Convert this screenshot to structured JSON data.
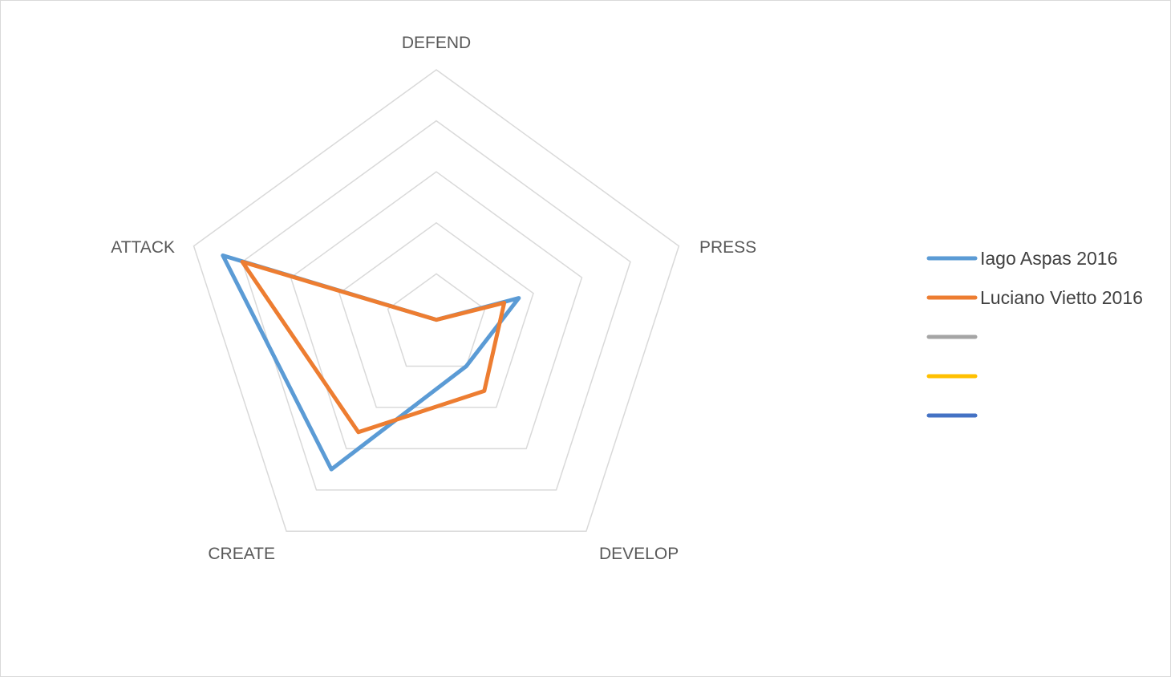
{
  "chart_data": {
    "type": "radar",
    "axes": [
      "DEFEND",
      "PRESS",
      "DEVELOP",
      "CREATE",
      "ATTACK"
    ],
    "rlim": [
      0,
      5
    ],
    "rings": 5,
    "grid": true,
    "legend_position": "right",
    "series": [
      {
        "name": "Iago Aspas 2016",
        "color": "#5b9bd5",
        "values": [
          0.1,
          1.7,
          1.0,
          3.5,
          4.4
        ]
      },
      {
        "name": "Luciano Vietto 2016",
        "color": "#ed7d31",
        "values": [
          0.1,
          1.4,
          1.6,
          2.6,
          4.0
        ]
      },
      {
        "name": "",
        "color": "#a5a5a5",
        "values": []
      },
      {
        "name": "",
        "color": "#ffc000",
        "values": []
      },
      {
        "name": "",
        "color": "#4472c4",
        "values": []
      }
    ]
  }
}
